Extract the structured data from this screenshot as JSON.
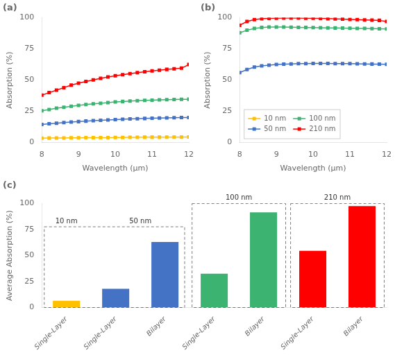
{
  "chart_data": [
    {
      "type": "line",
      "title": "(a)",
      "xlabel": "Wavelength (μm)",
      "ylabel": "Absorption (%)",
      "x": [
        8.0,
        8.2,
        8.4,
        8.6,
        8.8,
        9.0,
        9.2,
        9.4,
        9.6,
        9.8,
        10.0,
        10.2,
        10.4,
        10.6,
        10.8,
        11.0,
        11.2,
        11.4,
        11.6,
        11.8,
        12.0
      ],
      "series": [
        {
          "name": "10 nm",
          "color": "#FFC000",
          "values": [
            3.5,
            3.6,
            3.7,
            3.7,
            3.8,
            3.8,
            3.9,
            3.9,
            4.0,
            4.0,
            4.1,
            4.1,
            4.2,
            4.2,
            4.3,
            4.3,
            4.3,
            4.4,
            4.4,
            4.4,
            4.5
          ]
        },
        {
          "name": "50 nm",
          "color": "#4472C4",
          "values": [
            14.5,
            15.0,
            15.5,
            16.0,
            16.4,
            16.8,
            17.2,
            17.5,
            17.8,
            18.1,
            18.4,
            18.7,
            18.9,
            19.1,
            19.3,
            19.5,
            19.6,
            19.8,
            19.9,
            20.0,
            20.1
          ]
        },
        {
          "name": "100 nm",
          "color": "#3CB371",
          "values": [
            25.5,
            26.5,
            27.5,
            28.3,
            29.1,
            29.8,
            30.5,
            31.0,
            31.5,
            32.0,
            32.5,
            32.9,
            33.2,
            33.5,
            33.8,
            34.0,
            34.2,
            34.4,
            34.5,
            34.6,
            34.7
          ]
        },
        {
          "name": "210 nm",
          "color": "#FF0000",
          "values": [
            38.0,
            40.0,
            42.0,
            44.0,
            46.0,
            47.5,
            49.0,
            50.2,
            51.4,
            52.5,
            53.5,
            54.4,
            55.2,
            56.0,
            56.7,
            57.4,
            58.0,
            58.6,
            59.1,
            59.6,
            62.5
          ]
        }
      ],
      "xlim": [
        8,
        12
      ],
      "xticks": [
        8,
        9,
        10,
        11,
        12
      ],
      "ylim": [
        0,
        100
      ],
      "yticks": [
        0,
        25,
        50,
        75,
        100
      ],
      "marker": "square",
      "line_style": "solid",
      "grid": false
    },
    {
      "type": "line",
      "title": "(b)",
      "xlabel": "Wavelength (μm)",
      "ylabel": "Absorption (%)",
      "x": [
        8.0,
        8.2,
        8.4,
        8.6,
        8.8,
        9.0,
        9.2,
        9.4,
        9.6,
        9.8,
        10.0,
        10.2,
        10.4,
        10.6,
        10.8,
        11.0,
        11.2,
        11.4,
        11.6,
        11.8,
        12.0
      ],
      "series": [
        {
          "name": "10 nm",
          "color": "#FFC000",
          "values": [
            null,
            null,
            null,
            null,
            null,
            null,
            null,
            null,
            null,
            null,
            null,
            null,
            null,
            null,
            null,
            null,
            null,
            null,
            null,
            null,
            null
          ]
        },
        {
          "name": "50 nm",
          "color": "#4472C4",
          "values": [
            56.0,
            58.5,
            60.5,
            61.5,
            62.0,
            62.5,
            62.8,
            63.0,
            63.2,
            63.3,
            63.4,
            63.4,
            63.4,
            63.3,
            63.3,
            63.2,
            63.1,
            63.0,
            62.9,
            62.8,
            62.7
          ]
        },
        {
          "name": "100 nm",
          "color": "#3CB371",
          "values": [
            88.0,
            90.0,
            91.5,
            92.2,
            92.5,
            92.5,
            92.5,
            92.4,
            92.3,
            92.2,
            92.1,
            92.0,
            91.9,
            91.8,
            91.7,
            91.6,
            91.5,
            91.4,
            91.3,
            91.2,
            91.0
          ]
        },
        {
          "name": "210 nm",
          "color": "#FF0000",
          "values": [
            94.0,
            97.0,
            98.5,
            99.2,
            99.5,
            99.7,
            99.8,
            99.8,
            99.8,
            99.7,
            99.6,
            99.5,
            99.3,
            99.1,
            98.9,
            98.7,
            98.5,
            98.3,
            98.1,
            97.9,
            97.0
          ]
        }
      ],
      "xlim": [
        8,
        12
      ],
      "xticks": [
        8,
        9,
        10,
        11,
        12
      ],
      "ylim": [
        0,
        100
      ],
      "yticks": [
        0,
        25,
        50,
        75,
        100
      ],
      "marker": "square",
      "line_style": "solid",
      "grid": false,
      "legend": "lower left"
    },
    {
      "type": "bar",
      "title": "(c)",
      "ylabel": "Average Absorption (%)",
      "categories": [
        "Single-Layer",
        "Single-Layer",
        "Bilayer",
        "Single-Layer",
        "Bilayer",
        "Single-Layer",
        "Bilayer"
      ],
      "values": [
        6.5,
        18.0,
        63.0,
        32.5,
        91.5,
        54.5,
        97.5
      ],
      "colors": [
        "#FFC000",
        "#4472C4",
        "#4472C4",
        "#3CB371",
        "#3CB371",
        "#FF0000",
        "#FF0000"
      ],
      "ylim": [
        0,
        100
      ],
      "yticks": [
        0,
        25,
        50,
        75,
        100
      ],
      "annotations": [
        "10 nm",
        "50 nm",
        "100 nm",
        "210 nm"
      ],
      "grid": false
    }
  ]
}
